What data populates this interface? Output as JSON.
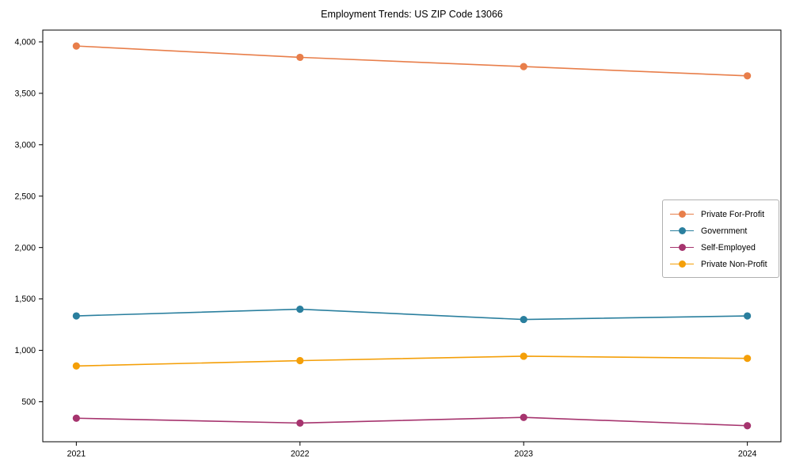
{
  "chart_data": {
    "type": "line",
    "title": "Employment Trends: US ZIP Code 13066",
    "x": [
      2021,
      2022,
      2023,
      2024
    ],
    "x_tick_labels": [
      "2021",
      "2022",
      "2023",
      "2024"
    ],
    "series": [
      {
        "name": "Private For-Profit",
        "color": "#e87e4a",
        "values": [
          3960,
          3850,
          3760,
          3670
        ]
      },
      {
        "name": "Government",
        "color": "#2a7f9e",
        "values": [
          1335,
          1400,
          1300,
          1335
        ]
      },
      {
        "name": "Self-Employed",
        "color": "#a6346e",
        "values": [
          340,
          293,
          348,
          267
        ]
      },
      {
        "name": "Private Non-Profit",
        "color": "#f49f08",
        "values": [
          848,
          900,
          943,
          922
        ]
      }
    ],
    "yticks": [
      500,
      1000,
      1500,
      2000,
      2500,
      3000,
      3500,
      4000
    ],
    "ytick_labels": [
      "500",
      "1,000",
      "1,500",
      "2,000",
      "2,500",
      "3,000",
      "3,500",
      "4,000"
    ],
    "ylim": [
      111,
      4115
    ],
    "xlim": [
      2020.85,
      2024.15
    ],
    "grid": false,
    "legend_position": "center-right",
    "line_width": 1.6,
    "marker": "circle",
    "marker_radius": 4.6
  }
}
